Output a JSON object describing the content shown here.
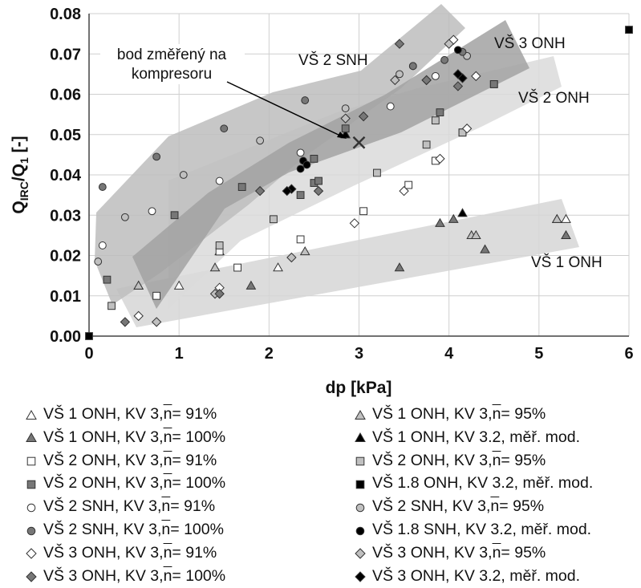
{
  "chart_data": {
    "type": "scatter",
    "xlabel": "dp [kPa]",
    "ylabel": "Q_IRC/Q_1 [-]",
    "ylabel_main": "Q",
    "ylabel_sub": "IRC",
    "ylabel_mid": "/Q",
    "ylabel_sub2": "1",
    "ylabel_tail": " [-]",
    "xlim": [
      0,
      6
    ],
    "ylim": [
      0,
      0.08
    ],
    "xticks": [
      0,
      1,
      2,
      3,
      4,
      5,
      6
    ],
    "yticks": [
      "0.00",
      "0.01",
      "0.02",
      "0.03",
      "0.04",
      "0.05",
      "0.06",
      "0.07",
      "0.08"
    ],
    "grid": true,
    "bands": [
      {
        "label": "VŠ 1 ONH",
        "color": "#cfcfcf"
      },
      {
        "label": "VŠ 2 ONH",
        "color": "#d9d9d9"
      },
      {
        "label": "VŠ 2 SNH",
        "color": "#bdbdbd"
      },
      {
        "label": "VŠ 3 ONH",
        "color": "#9e9e9e"
      }
    ],
    "annotation": {
      "text_line1": "bod změřený na",
      "text_line2": "kompresoru",
      "point": [
        3.0,
        0.048
      ]
    },
    "series": [
      {
        "name": "VŠ 1 ONH, KV 3, n = 91%",
        "legend_prefix": "VŠ 1 ONH, KV 3, ",
        "legend_suffix": " = 91%",
        "marker": "triangle",
        "fill": "#ffffff",
        "points": [
          [
            0.55,
            0.0125
          ],
          [
            1.0,
            0.0125
          ],
          [
            1.45,
            0.021
          ],
          [
            2.1,
            0.017
          ],
          [
            5.2,
            0.029
          ],
          [
            5.3,
            0.029
          ]
        ]
      },
      {
        "name": "VŠ 1 ONH, KV 3, n = 95%",
        "legend_prefix": "VŠ 1 ONH, KV 3, ",
        "legend_suffix": " = 95%",
        "marker": "triangle",
        "fill": "#c0c0c0",
        "points": [
          [
            0.55,
            0.0125
          ],
          [
            1.4,
            0.017
          ],
          [
            2.4,
            0.021
          ],
          [
            4.25,
            0.025
          ],
          [
            4.3,
            0.025
          ],
          [
            5.2,
            0.029
          ]
        ]
      },
      {
        "name": "VŠ 1 ONH, KV 3, n = 100%",
        "legend_prefix": "VŠ 1 ONH, KV 3, ",
        "legend_suffix": " = 100%",
        "marker": "triangle",
        "fill": "#777777",
        "points": [
          [
            1.8,
            0.0125
          ],
          [
            3.45,
            0.017
          ],
          [
            3.9,
            0.028
          ],
          [
            4.05,
            0.029
          ],
          [
            4.4,
            0.0215
          ],
          [
            5.3,
            0.025
          ]
        ]
      },
      {
        "name": "VŠ 1 ONH, KV 3.2, měř. mod.",
        "legend_prefix": "VŠ 1 ONH, KV 3.2, měř. mod.",
        "legend_suffix": "",
        "marker": "triangle",
        "fill": "#000000",
        "points": [
          [
            2.85,
            0.05
          ],
          [
            4.15,
            0.0305
          ]
        ]
      },
      {
        "name": "VŠ 2 ONH, KV 3, n = 91%",
        "legend_prefix": "VŠ 2 ONH, KV 3, ",
        "legend_suffix": " = 91%",
        "marker": "square",
        "fill": "#ffffff",
        "points": [
          [
            0.75,
            0.01
          ],
          [
            1.45,
            0.021
          ],
          [
            1.65,
            0.017
          ],
          [
            2.35,
            0.024
          ],
          [
            3.05,
            0.031
          ],
          [
            3.55,
            0.0375
          ],
          [
            3.85,
            0.0435
          ],
          [
            4.15,
            0.0505
          ]
        ]
      },
      {
        "name": "VŠ 2 ONH, KV 3, n = 95%",
        "legend_prefix": "VŠ 2 ONH, KV 3, ",
        "legend_suffix": " = 95%",
        "marker": "square",
        "fill": "#c0c0c0",
        "points": [
          [
            0.25,
            0.0075
          ],
          [
            1.45,
            0.0225
          ],
          [
            2.05,
            0.029
          ],
          [
            3.2,
            0.0405
          ],
          [
            3.75,
            0.0475
          ],
          [
            3.85,
            0.0535
          ],
          [
            4.15,
            0.0505
          ],
          [
            4.5,
            0.0625
          ]
        ]
      },
      {
        "name": "VŠ 2 ONH, KV 3, n = 100%",
        "legend_prefix": "VŠ 2 ONH, KV 3, ",
        "legend_suffix": " = 100%",
        "marker": "square",
        "fill": "#777777",
        "points": [
          [
            0.2,
            0.014
          ],
          [
            0.95,
            0.03
          ],
          [
            1.7,
            0.037
          ],
          [
            2.35,
            0.035
          ],
          [
            2.5,
            0.038
          ],
          [
            2.5,
            0.044
          ],
          [
            2.55,
            0.0385
          ],
          [
            2.85,
            0.0515
          ],
          [
            3.9,
            0.0555
          ],
          [
            4.5,
            0.0625
          ]
        ]
      },
      {
        "name": "VŠ 1.8 ONH, KV 3.2, měř. mod.",
        "legend_prefix": "VŠ 1.8 ONH, KV 3.2, měř. mod.",
        "legend_suffix": "",
        "marker": "square",
        "fill": "#000000",
        "points": [
          [
            0.0,
            0.0
          ],
          [
            6.0,
            0.076
          ]
        ]
      },
      {
        "name": "VŠ 2 SNH, KV 3, n = 91%",
        "legend_prefix": "VŠ 2 SNH, KV 3, ",
        "legend_suffix": " = 91%",
        "marker": "circle",
        "fill": "#ffffff",
        "points": [
          [
            0.15,
            0.0225
          ],
          [
            0.7,
            0.031
          ],
          [
            1.45,
            0.0385
          ],
          [
            2.35,
            0.0455
          ],
          [
            3.35,
            0.057
          ],
          [
            3.85,
            0.0645
          ]
        ]
      },
      {
        "name": "VŠ 2 SNH, KV 3, n = 95%",
        "legend_prefix": "VŠ 2 SNH, KV 3, ",
        "legend_suffix": " = 95%",
        "marker": "circle",
        "fill": "#c0c0c0",
        "points": [
          [
            0.1,
            0.0185
          ],
          [
            0.4,
            0.0295
          ],
          [
            1.05,
            0.04
          ],
          [
            1.9,
            0.0485
          ],
          [
            2.85,
            0.0565
          ],
          [
            3.45,
            0.065
          ],
          [
            3.6,
            0.067
          ],
          [
            4.2,
            0.0695
          ]
        ]
      },
      {
        "name": "VŠ 2 SNH, KV 3, n = 100%",
        "legend_prefix": "VŠ 2 SNH, KV 3, ",
        "legend_suffix": " = 100%",
        "marker": "circle",
        "fill": "#777777",
        "points": [
          [
            0.15,
            0.037
          ],
          [
            0.75,
            0.0445
          ],
          [
            1.5,
            0.0515
          ],
          [
            2.4,
            0.0585
          ],
          [
            3.6,
            0.067
          ],
          [
            3.95,
            0.0685
          ],
          [
            4.15,
            0.0705
          ]
        ]
      },
      {
        "name": "VŠ 1.8 SNH, KV 3.2, měř. mod.",
        "legend_prefix": "VŠ 1.8 SNH, KV 3.2, měř. mod.",
        "legend_suffix": "",
        "marker": "circle",
        "fill": "#000000",
        "points": [
          [
            2.35,
            0.0415
          ],
          [
            2.38,
            0.0435
          ],
          [
            2.42,
            0.0425
          ],
          [
            4.1,
            0.071
          ]
        ]
      },
      {
        "name": "VŠ 3 ONH, KV 3, n = 91%",
        "legend_prefix": "VŠ 3 ONH, KV 3, ",
        "legend_suffix": " = 91%",
        "marker": "diamond",
        "fill": "#ffffff",
        "points": [
          [
            0.55,
            0.005
          ],
          [
            1.45,
            0.012
          ],
          [
            2.95,
            0.028
          ],
          [
            3.5,
            0.036
          ],
          [
            3.9,
            0.044
          ],
          [
            4.05,
            0.0735
          ],
          [
            4.2,
            0.0515
          ],
          [
            4.3,
            0.0645
          ],
          [
            3.75,
            0.0635
          ]
        ]
      },
      {
        "name": "VŠ 3 ONH, KV 3, n = 95%",
        "legend_prefix": "VŠ 3 ONH, KV 3, ",
        "legend_suffix": " = 95%",
        "marker": "diamond",
        "fill": "#c0c0c0",
        "points": [
          [
            0.75,
            0.0035
          ],
          [
            1.4,
            0.0105
          ],
          [
            2.25,
            0.0195
          ],
          [
            2.85,
            0.054
          ],
          [
            3.4,
            0.0635
          ],
          [
            4.0,
            0.0725
          ]
        ]
      },
      {
        "name": "VŠ 3 ONH, KV 3, n = 100%",
        "legend_prefix": "VŠ 3 ONH, KV 3, ",
        "legend_suffix": " = 100%",
        "marker": "diamond",
        "fill": "#777777",
        "points": [
          [
            0.4,
            0.0035
          ],
          [
            1.45,
            0.0105
          ],
          [
            1.9,
            0.036
          ],
          [
            2.55,
            0.036
          ],
          [
            3.05,
            0.0545
          ],
          [
            3.45,
            0.0725
          ],
          [
            3.75,
            0.0635
          ],
          [
            4.1,
            0.062
          ]
        ]
      },
      {
        "name": "VŠ 3 ONH, KV 3.2, měř. mod.",
        "legend_prefix": "VŠ 3 ONH, KV 3.2, měř. mod.",
        "legend_suffix": "",
        "marker": "diamond",
        "fill": "#000000",
        "points": [
          [
            2.25,
            0.0365
          ],
          [
            2.2,
            0.036
          ],
          [
            4.15,
            0.064
          ],
          [
            4.1,
            0.065
          ]
        ]
      }
    ],
    "x_cross": [
      3.0,
      0.048
    ],
    "legend_bar": "n"
  }
}
